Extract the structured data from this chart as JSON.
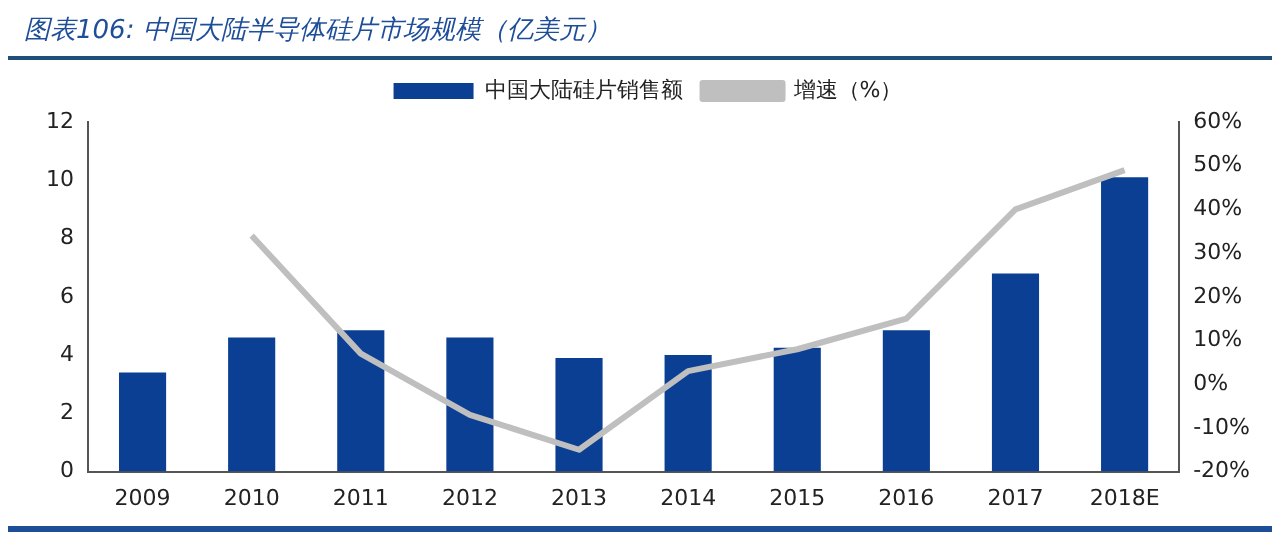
{
  "chart_data": {
    "type": "bar",
    "title": "图表106: 中国大陆半导体硅片市场规模（亿美元）",
    "categories": [
      "2009",
      "2010",
      "2011",
      "2012",
      "2013",
      "2014",
      "2015",
      "2016",
      "2017",
      "2018E"
    ],
    "series": [
      {
        "name": "中国大陆硅片销售额",
        "color": "#0b3f94",
        "values": [
          3.4,
          4.6,
          4.85,
          4.6,
          3.9,
          4.0,
          4.25,
          4.85,
          6.8,
          10.1
        ]
      },
      {
        "name": "增速（%）",
        "type": "line",
        "axis": "y2",
        "color": "#bfbfbf",
        "values": [
          null,
          34,
          7,
          -7,
          -15,
          3,
          8,
          15,
          40,
          49
        ]
      }
    ],
    "ylim": [
      0,
      12
    ],
    "yticks": [
      0,
      2,
      4,
      6,
      8,
      10,
      12
    ],
    "y2lim": [
      -20,
      60
    ],
    "y2ticks": [
      {
        "value": -20,
        "label": "-20%"
      },
      {
        "value": -10,
        "label": "-10%"
      },
      {
        "value": 0,
        "label": "0%"
      },
      {
        "value": 10,
        "label": "10%"
      },
      {
        "value": 20,
        "label": "20%"
      },
      {
        "value": 30,
        "label": "30%"
      },
      {
        "value": 40,
        "label": "40%"
      },
      {
        "value": 50,
        "label": "50%"
      },
      {
        "value": 60,
        "label": "60%"
      }
    ],
    "grid": false,
    "legend": "top",
    "marker": "none"
  }
}
